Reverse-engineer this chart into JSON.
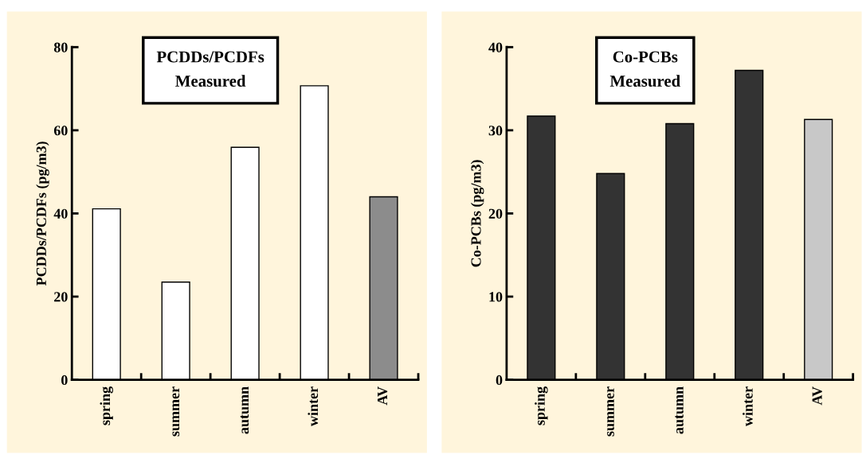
{
  "chart_data": [
    {
      "type": "bar",
      "title": "PCDDs/PCDFs\nMeasured",
      "ylabel": "PCDDs/PCDFs (pg/m3)",
      "categories": [
        "spring",
        "summer",
        "autumn",
        "winter",
        "AV"
      ],
      "values": [
        41.1,
        23.5,
        55.9,
        70.7,
        44.0
      ],
      "colors": [
        "#ffffff",
        "#ffffff",
        "#ffffff",
        "#ffffff",
        "#8c8c8c"
      ],
      "ylim": [
        0,
        80
      ],
      "yticks": [
        0,
        20,
        40,
        60,
        80
      ],
      "grid": false,
      "legend": false
    },
    {
      "type": "bar",
      "title": "Co-PCBs\nMeasured",
      "ylabel": "Co-PCBs (pg/m3)",
      "categories": [
        "spring",
        "summer",
        "autumn",
        "winter",
        "AV"
      ],
      "values": [
        31.7,
        24.8,
        30.8,
        37.2,
        31.3
      ],
      "colors": [
        "#333333",
        "#333333",
        "#333333",
        "#333333",
        "#c8c8c8"
      ],
      "ylim": [
        0,
        40
      ],
      "yticks": [
        0,
        10,
        20,
        30,
        40
      ],
      "grid": false,
      "legend": false
    }
  ]
}
